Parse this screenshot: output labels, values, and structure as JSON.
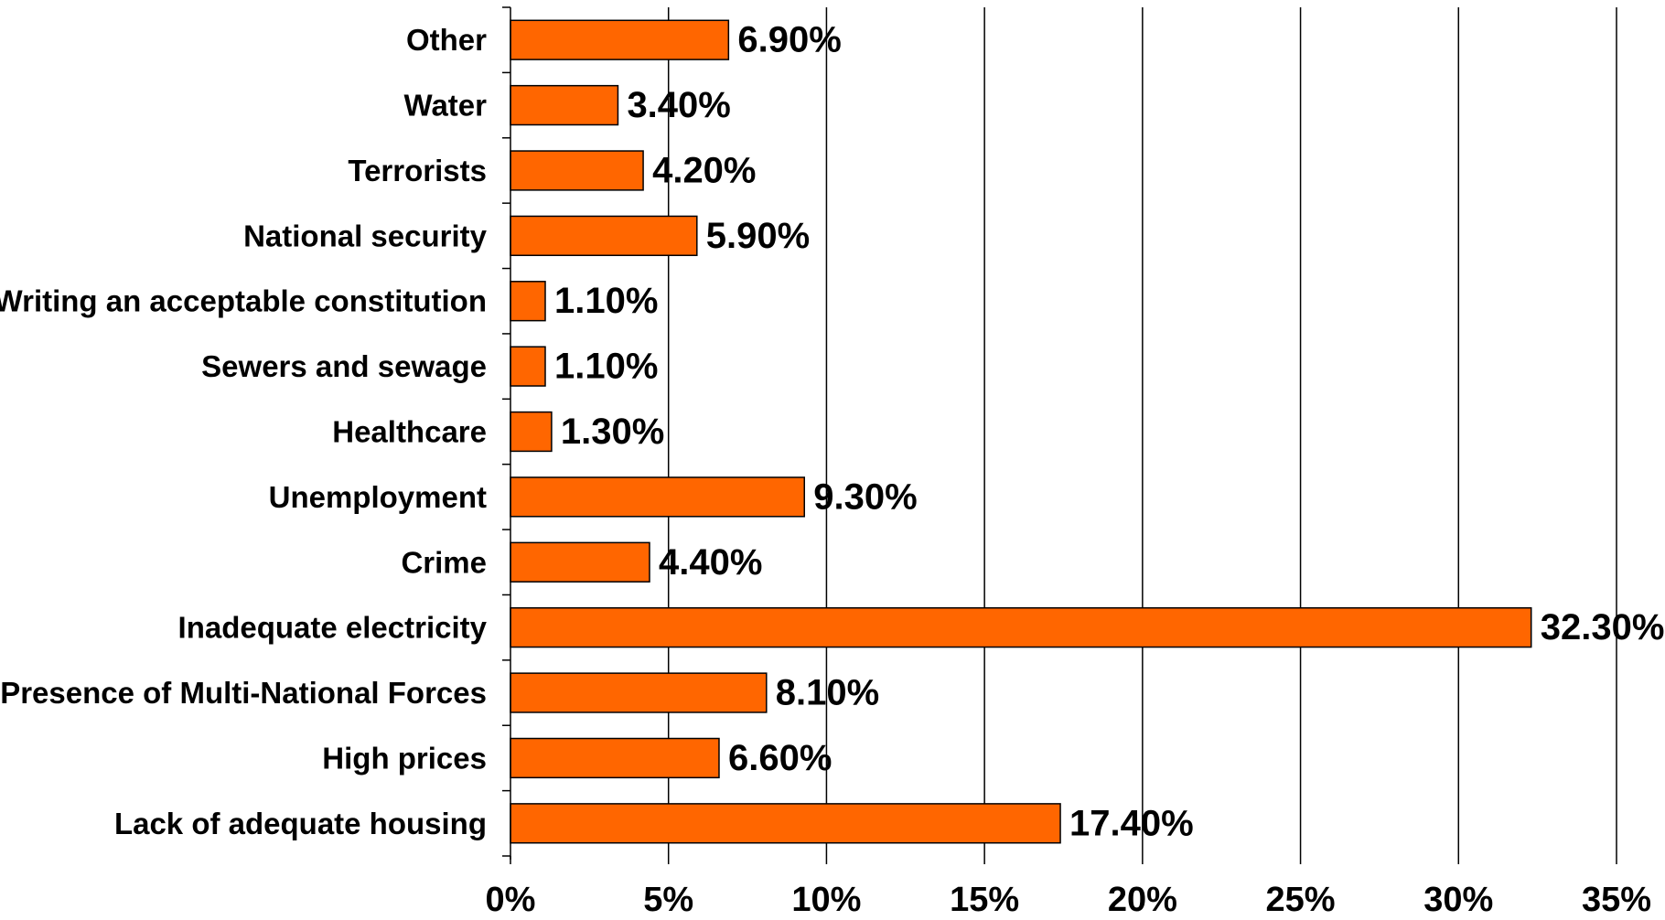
{
  "chart_data": {
    "type": "bar",
    "orientation": "horizontal",
    "categories": [
      "Other",
      "Water",
      "Terrorists",
      "National security",
      "Writing an acceptable constitution",
      "Sewers and sewage",
      "Healthcare",
      "Unemployment",
      "Crime",
      "Inadequate electricity",
      "Presence of Multi-National Forces",
      "High prices",
      "Lack of adequate housing"
    ],
    "values": [
      6.9,
      3.4,
      4.2,
      5.9,
      1.1,
      1.1,
      1.3,
      9.3,
      4.4,
      32.3,
      8.1,
      6.6,
      17.4
    ],
    "value_labels": [
      "6.90%",
      "3.40%",
      "4.20%",
      "5.90%",
      "1.10%",
      "1.10%",
      "1.30%",
      "9.30%",
      "4.40%",
      "32.30%",
      "8.10%",
      "6.60%",
      "17.40%"
    ],
    "x_ticks": [
      0,
      5,
      10,
      15,
      20,
      25,
      30,
      35
    ],
    "x_tick_labels": [
      "0%",
      "5%",
      "10%",
      "15%",
      "20%",
      "25%",
      "30%",
      "35%"
    ],
    "xlim": [
      0,
      35
    ],
    "title": "",
    "xlabel": "",
    "ylabel": "",
    "grid": "vertical",
    "legend": "none",
    "colors": {
      "bar_fill": "#FF6600",
      "bar_stroke": "#000000",
      "grid": "#000000",
      "text": "#000000",
      "background": "#FFFFFF"
    }
  }
}
